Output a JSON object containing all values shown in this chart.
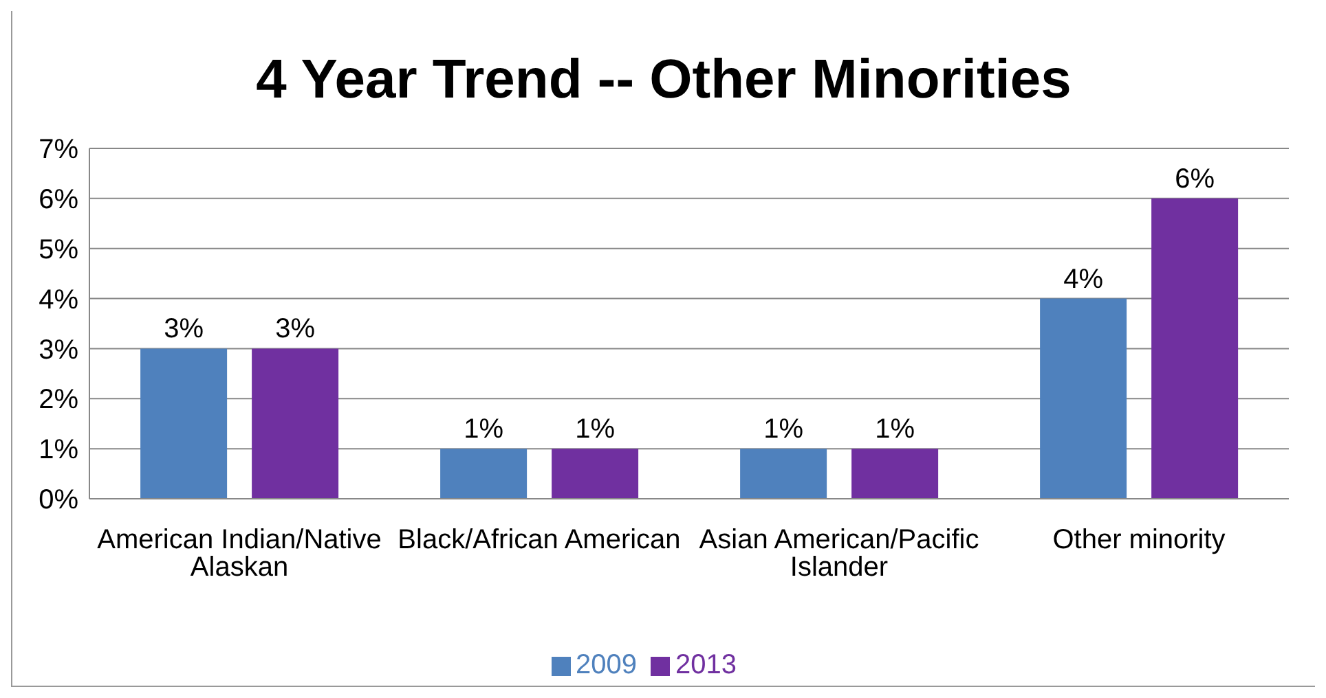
{
  "chart_data": {
    "type": "bar",
    "title": "4 Year Trend -- Other Minorities",
    "categories": [
      "American Indian/Native Alaskan",
      "Black/African American",
      "Asian American/Pacific Islander",
      "Other minority"
    ],
    "series": [
      {
        "name": "2009",
        "color": "#4f81bd",
        "values": [
          3,
          1,
          1,
          4
        ],
        "value_labels": [
          "3%",
          "1%",
          "1%",
          "4%"
        ]
      },
      {
        "name": "2013",
        "color": "#7030a0",
        "values": [
          3,
          1,
          1,
          6
        ],
        "value_labels": [
          "3%",
          "1%",
          "1%",
          "6%"
        ]
      }
    ],
    "ylim": [
      0,
      7
    ],
    "yticks": [
      {
        "value": 0,
        "label": "0%"
      },
      {
        "value": 1,
        "label": "1%"
      },
      {
        "value": 2,
        "label": "2%"
      },
      {
        "value": 3,
        "label": "3%"
      },
      {
        "value": 4,
        "label": "4%"
      },
      {
        "value": 5,
        "label": "5%"
      },
      {
        "value": 6,
        "label": "6%"
      },
      {
        "value": 7,
        "label": "7%"
      }
    ],
    "grid": "y",
    "legend": "bottom"
  }
}
